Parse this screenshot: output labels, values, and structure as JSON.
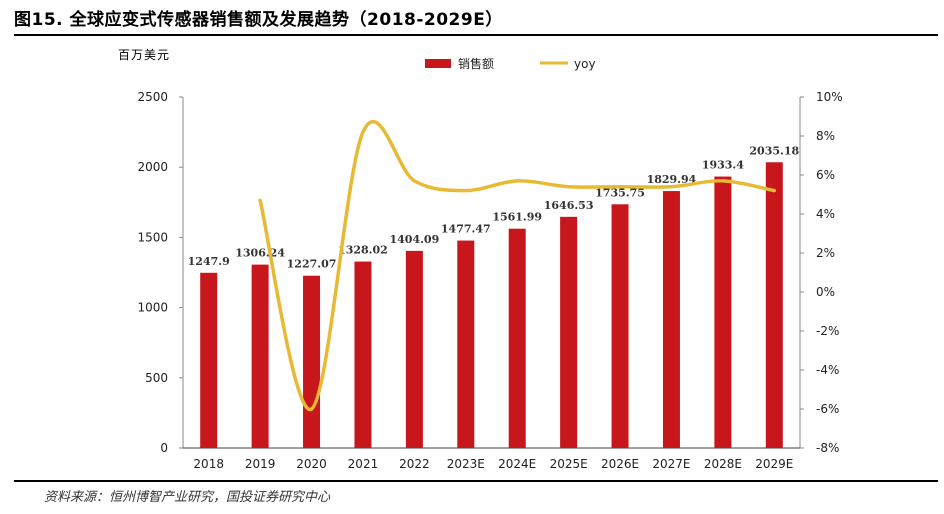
{
  "title": "图15. 全球应变式传感器销售额及发展趋势（2018-2029E）",
  "unit": "百万美元",
  "source": "资料来源：恒州博智产业研究，国投证券研究中心",
  "chart_data": {
    "type": "bar+line",
    "categories": [
      "2018",
      "2019",
      "2020",
      "2021",
      "2022",
      "2023E",
      "2024E",
      "2025E",
      "2026E",
      "2027E",
      "2028E",
      "2029E"
    ],
    "series": [
      {
        "name": "销售额",
        "type": "bar",
        "axis": "left",
        "color": "#c8161d",
        "values": [
          1247.9,
          1306.24,
          1227.07,
          1328.02,
          1404.09,
          1477.47,
          1561.99,
          1646.53,
          1735.75,
          1829.94,
          1933.4,
          2035.18
        ],
        "labels": [
          "1247.9",
          "1306.24",
          "1227.07",
          "1328.02",
          "1404.09",
          "1477.47",
          "1561.99",
          "1646.53",
          "1735.75",
          "1829.94",
          "1933.4",
          "2035.18"
        ]
      },
      {
        "name": "yoy",
        "type": "line",
        "axis": "right",
        "color": "#e8b932",
        "values": [
          null,
          4.7,
          -6.0,
          8.2,
          5.7,
          5.2,
          5.7,
          5.4,
          5.4,
          5.4,
          5.7,
          5.2
        ]
      }
    ],
    "y_left": {
      "ylim": [
        0,
        2500
      ],
      "ticks": [
        0,
        500,
        1000,
        1500,
        2000,
        2500
      ],
      "tick_labels": [
        "0",
        "500",
        "1000",
        "1500",
        "2000",
        "2500"
      ]
    },
    "y_right": {
      "ylim": [
        -8,
        10
      ],
      "ticks": [
        -8,
        -6,
        -4,
        -2,
        0,
        2,
        4,
        6,
        8,
        10
      ],
      "tick_labels": [
        "-8%",
        "-6%",
        "-4%",
        "-2%",
        "0%",
        "2%",
        "4%",
        "6%",
        "8%",
        "10%"
      ]
    },
    "legend": {
      "position": "top-center",
      "items": [
        "销售额",
        "yoy"
      ]
    }
  }
}
